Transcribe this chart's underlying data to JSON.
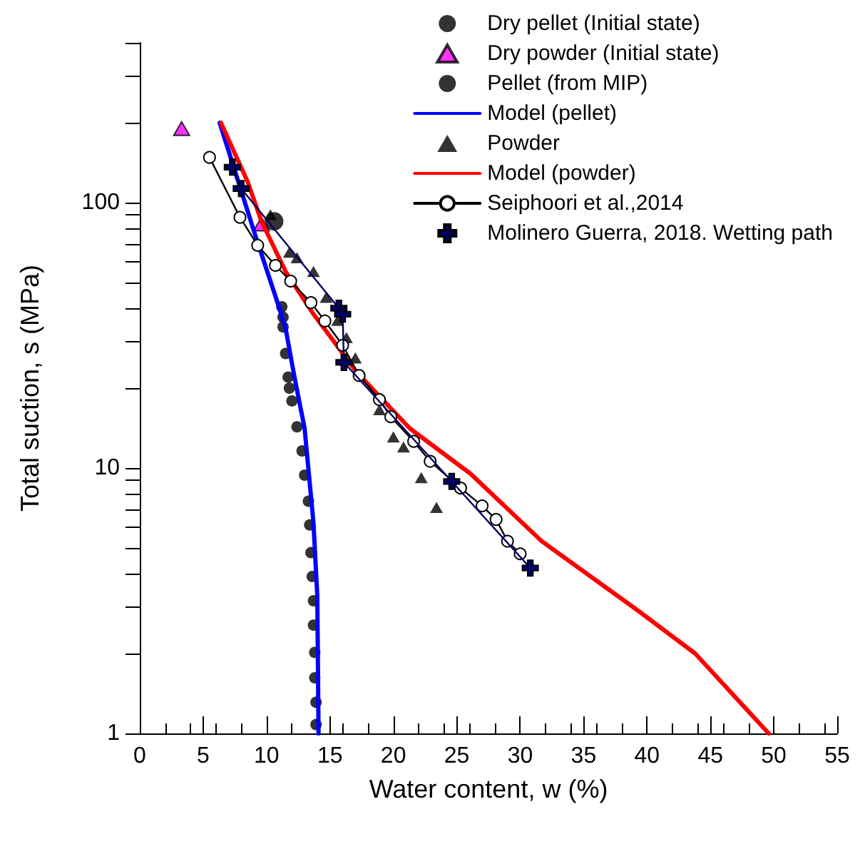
{
  "chart_data": {
    "type": "scatter",
    "xlabel": "Water content, w (%)",
    "ylabel": "Total suction, s (MPa)",
    "log": "y",
    "grid": false,
    "legend": "top right",
    "xlim": [
      0,
      55
    ],
    "xticks": [
      0,
      5,
      10,
      15,
      20,
      25,
      30,
      35,
      40,
      45,
      50,
      55
    ],
    "ylim": [
      1,
      400
    ],
    "yticks": [
      1,
      {
        "value": 2,
        "label": null
      },
      {
        "value": 3,
        "label": null
      },
      {
        "value": 4,
        "label": null
      },
      {
        "value": 5,
        "label": null
      },
      {
        "value": 6,
        "label": null
      },
      {
        "value": 7,
        "label": null
      },
      {
        "value": 8,
        "label": null
      },
      {
        "value": 9,
        "label": null
      },
      10,
      {
        "value": 20,
        "label": null
      },
      {
        "value": 30,
        "label": null
      },
      {
        "value": 40,
        "label": null
      },
      {
        "value": 50,
        "label": null
      },
      {
        "value": 60,
        "label": null
      },
      {
        "value": 70,
        "label": null
      },
      {
        "value": 80,
        "label": null
      },
      {
        "value": 90,
        "label": null
      },
      100,
      {
        "value": 200,
        "label": null
      },
      {
        "value": 300,
        "label": null
      },
      {
        "value": 400,
        "label": null
      }
    ],
    "series": [
      {
        "name": "Dry pellet (Initial state)",
        "marker": "circle",
        "color": "#000000",
        "x": [
          10.6
        ],
        "values": [
          85
        ]
      },
      {
        "name": "Dry powder (Initial state)",
        "marker": "triangle",
        "color": "#ff00ff",
        "x": [
          3.3,
          9.6
        ],
        "values": [
          190,
          83
        ]
      },
      {
        "name": "Pellet (from MIP)",
        "marker": "circle",
        "color": "#000000",
        "x": [
          11.2,
          11.3,
          11.3,
          11.5,
          11.7,
          11.8,
          12.0,
          12.4,
          12.8,
          13.0,
          13.3,
          13.4,
          13.5,
          13.6,
          13.7,
          13.7,
          13.8,
          13.8,
          13.9,
          13.9
        ],
        "values": [
          40.5,
          37,
          34,
          27,
          22,
          20,
          17.9,
          14.3,
          11.6,
          9.4,
          7.5,
          6.1,
          4.8,
          3.9,
          3.16,
          2.56,
          2.02,
          1.62,
          1.31,
          1.08
        ]
      },
      {
        "name": "Model (pellet)",
        "type": "line",
        "marker": "none",
        "color": "#0000ff",
        "x": [
          6.3,
          9.2,
          10.9,
          11.5,
          12.2,
          13.0,
          13.7,
          14.0,
          14.1
        ],
        "values": [
          200,
          73,
          41.5,
          33.6,
          22,
          14.1,
          6.2,
          3.3,
          1.0
        ]
      },
      {
        "name": "Powder",
        "marker": "triangle",
        "color": "#000000",
        "x": [
          10.3,
          11.8,
          12.4,
          13.7,
          14.7,
          15.6,
          16.3,
          17.0,
          18.9,
          20.0,
          20.8,
          22.2,
          23.4
        ],
        "values": [
          90,
          65,
          62,
          55,
          44,
          36,
          31,
          26,
          16.6,
          13.1,
          12.0,
          9.2,
          7.1
        ]
      },
      {
        "name": "Model (powder)",
        "type": "line",
        "marker": "none",
        "color": "#ff0000",
        "x": [
          6.4,
          8.5,
          9.6,
          11.5,
          13.7,
          17.1,
          21.3,
          26.1,
          31.7,
          39.3,
          43.8,
          49.6
        ],
        "values": [
          200,
          120,
          85,
          55,
          38,
          23,
          14.1,
          9.5,
          5.3,
          2.9,
          2.0,
          1.0
        ]
      },
      {
        "name": "Seiphoori et al.,2014",
        "type": "line",
        "marker": "circle",
        "color": "#000000",
        "x": [
          5.5,
          7.9,
          9.3,
          10.7,
          11.9,
          13.5,
          14.6,
          16.0,
          17.3,
          18.9,
          19.8,
          21.6,
          22.9,
          25.3,
          27.0,
          28.1,
          29.0,
          30.0
        ],
        "values": [
          148,
          88,
          69,
          58,
          50.6,
          42,
          35.8,
          29,
          22.3,
          18.1,
          15.6,
          12.6,
          10.6,
          8.4,
          7.2,
          6.4,
          5.3,
          4.75
        ]
      },
      {
        "name": "Molinero Guerra, 2018. Wetting path",
        "type": "line",
        "marker": "cross",
        "color": "#000066",
        "x": [
          7.3,
          8.0,
          15.7,
          16.0,
          16.1,
          24.6,
          30.8
        ],
        "values": [
          136,
          113,
          40,
          38,
          25,
          8.9,
          4.2
        ]
      }
    ]
  }
}
